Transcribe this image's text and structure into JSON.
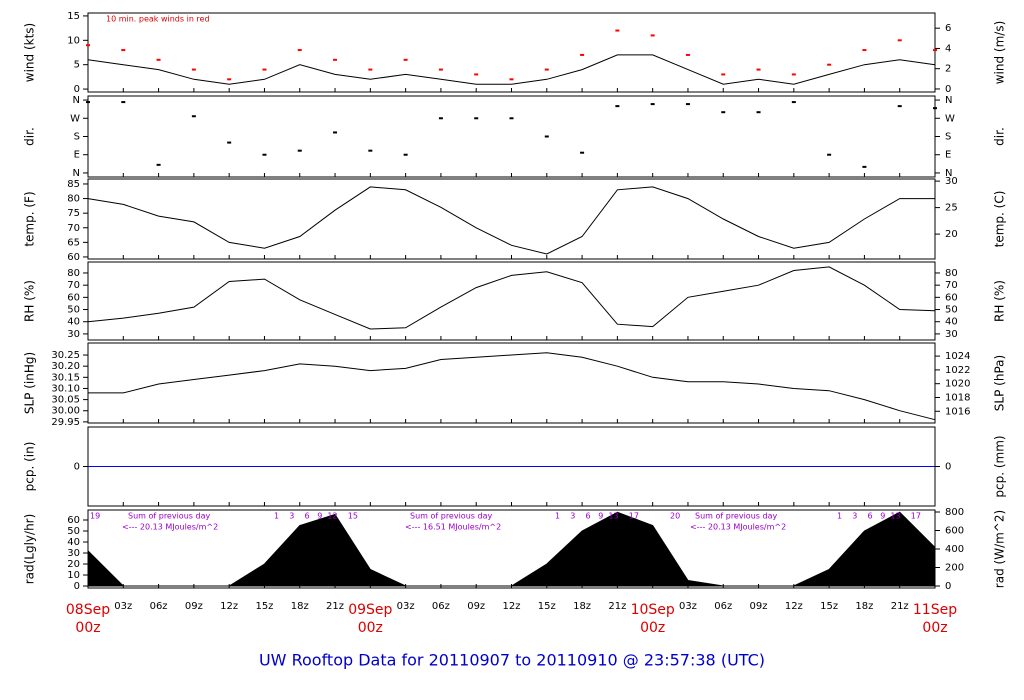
{
  "chart_data": {
    "title": "UW Rooftop Data for 20110907  to  20110910 @ 23:57:38  (UTC)",
    "title_color": "#0000cc",
    "x_axis": {
      "categories": [
        "00z",
        "03z",
        "06z",
        "09z",
        "12z",
        "15z",
        "18z",
        "21z",
        "00z",
        "03z",
        "06z",
        "09z",
        "12z",
        "15z",
        "18z",
        "21z",
        "00z",
        "03z",
        "06z",
        "09z",
        "12z",
        "15z",
        "18z",
        "21z",
        "00z"
      ],
      "day_labels": [
        "08Sep",
        "09Sep",
        "10Sep",
        "11Sep"
      ],
      "day_color": "#dd0000"
    },
    "panels": [
      {
        "type": "line",
        "ylabel": "wind (kts)",
        "y2label": "wind (m/s)",
        "ylim": [
          -0.6,
          15.6
        ],
        "yticks": [
          0,
          5,
          10,
          15
        ],
        "y2lim": [
          -0.3,
          7.5
        ],
        "y2ticks": [
          0,
          2,
          4,
          6
        ],
        "annotation": "10 min. peak winds in red",
        "annotation_color": "#dd0000",
        "series": [
          {
            "color": "#000000",
            "values": [
              6,
              5,
              4,
              2,
              1,
              2,
              5,
              3,
              2,
              3,
              2,
              1,
              1,
              2,
              4,
              7,
              7,
              4,
              1,
              2,
              1,
              3,
              5,
              6,
              5
            ]
          },
          {
            "color": "#ff0000",
            "style": "dash",
            "values": [
              9,
              8,
              6,
              4,
              2,
              4,
              8,
              6,
              4,
              6,
              4,
              3,
              2,
              4,
              7,
              12,
              11,
              7,
              3,
              4,
              3,
              5,
              8,
              10,
              8
            ]
          }
        ]
      },
      {
        "type": "scatter",
        "ylabel": "dir.",
        "y2label": "dir.",
        "ylim": [
          -20,
          380
        ],
        "yticks": [
          {
            "value": 360,
            "label": "N"
          },
          {
            "value": 270,
            "label": "W"
          },
          {
            "value": 180,
            "label": "S"
          },
          {
            "value": 90,
            "label": "E"
          },
          {
            "value": 0,
            "label": "N"
          }
        ],
        "y2lim": [
          -20,
          380
        ],
        "y2ticks": [
          {
            "value": 360,
            "label": "N"
          },
          {
            "value": 270,
            "label": "W"
          },
          {
            "value": 180,
            "label": "S"
          },
          {
            "value": 90,
            "label": "E"
          },
          {
            "value": 0,
            "label": "N"
          }
        ],
        "series": [
          {
            "color": "#000000",
            "values": [
              350,
              350,
              40,
              280,
              150,
              90,
              110,
              200,
              110,
              90,
              270,
              270,
              270,
              180,
              100,
              330,
              340,
              340,
              300,
              300,
              350,
              90,
              30,
              330,
              320
            ]
          }
        ]
      },
      {
        "type": "line",
        "ylabel": "temp. (F)",
        "y2label": "temp. (C)",
        "ylim": [
          59.3,
          86.7
        ],
        "yticks": [
          60,
          65,
          70,
          75,
          80,
          85
        ],
        "y2lim": [
          15.3,
          30.4
        ],
        "y2ticks": [
          20,
          25,
          30
        ],
        "series": [
          {
            "color": "#000000",
            "values": [
              80,
              78,
              74,
              72,
              65,
              63,
              67,
              76,
              84,
              83,
              77,
              70,
              64,
              61,
              67,
              83,
              84,
              80,
              73,
              67,
              63,
              65,
              73,
              80,
              80
            ]
          }
        ]
      },
      {
        "type": "line",
        "ylabel": "RH (%)",
        "y2label": "RH (%)",
        "ylim": [
          25,
          89
        ],
        "yticks": [
          30,
          40,
          50,
          60,
          70,
          80
        ],
        "y2lim": [
          25,
          89
        ],
        "y2ticks": [
          30,
          40,
          50,
          60,
          70,
          80
        ],
        "series": [
          {
            "color": "#000000",
            "values": [
              40,
              43,
              47,
              52,
              73,
              75,
              58,
              46,
              34,
              35,
              52,
              68,
              78,
              81,
              72,
              38,
              36,
              60,
              65,
              70,
              82,
              85,
              70,
              50,
              49
            ]
          }
        ]
      },
      {
        "type": "line",
        "ylabel": "SLP (inHg)",
        "y2label": "SLP (hPa)",
        "ylim": [
          29.945,
          30.304
        ],
        "yticks": [
          29.95,
          {
            "value": 30,
            "label": "30.00"
          },
          30.05,
          {
            "value": 30.1,
            "label": "30.10"
          },
          30.15,
          {
            "value": 30.2,
            "label": "30.20"
          },
          30.25
        ],
        "y2lim": [
          1014.3,
          1025.9
        ],
        "y2ticks": [
          1016,
          1018,
          1020,
          1022,
          1024
        ],
        "series": [
          {
            "color": "#000000",
            "values": [
              30.08,
              30.08,
              30.12,
              30.14,
              30.16,
              30.18,
              30.21,
              30.2,
              30.18,
              30.19,
              30.23,
              30.24,
              30.25,
              30.26,
              30.24,
              30.2,
              30.15,
              30.13,
              30.13,
              30.12,
              30.1,
              30.09,
              30.05,
              30,
              29.96
            ]
          }
        ]
      },
      {
        "type": "line",
        "ylabel": "pcp. (in)",
        "y2label": "pcp. (mm)",
        "ylim": [
          -1,
          1
        ],
        "yticks": [
          0
        ],
        "y2lim": [
          -1,
          1
        ],
        "y2ticks": [
          0
        ],
        "series": [
          {
            "color": "#0000ff",
            "values": [
              0,
              0,
              0,
              0,
              0,
              0,
              0,
              0,
              0,
              0,
              0,
              0,
              0,
              0,
              0,
              0,
              0,
              0,
              0,
              0,
              0,
              0,
              0,
              0,
              0
            ]
          }
        ]
      },
      {
        "type": "area",
        "ylabel": "rad(Lgly/hr)",
        "y2label": "rad (W/m^2)",
        "ylim": [
          -1.8,
          69.1
        ],
        "yticks": [
          0,
          10,
          20,
          30,
          40,
          50,
          60
        ],
        "y2lim": [
          -21.6,
          821.6
        ],
        "y2ticks": [
          0,
          200,
          400,
          600,
          800
        ],
        "annotation_color": "#9900cc",
        "annotations": [
          "19",
          "1    3    6   9  12    15",
          "Sum of previous day",
          "<--- 20.13 MJoules/m^2",
          "Sum of previous day",
          "<--- 16.51 MJoules/m^2",
          "1    3    6   9  13    17",
          "20",
          "Sum of previous day",
          "<--- 20.13 MJoules/m^2",
          "1    3    6   9  13    17"
        ],
        "series": [
          {
            "color": "#000000",
            "values": [
              32,
              0,
              0,
              0,
              0,
              20,
              55,
              65,
              15,
              0,
              0,
              0,
              0,
              20,
              50,
              67,
              55,
              5,
              0,
              0,
              0,
              15,
              50,
              67,
              35
            ]
          }
        ]
      }
    ]
  }
}
